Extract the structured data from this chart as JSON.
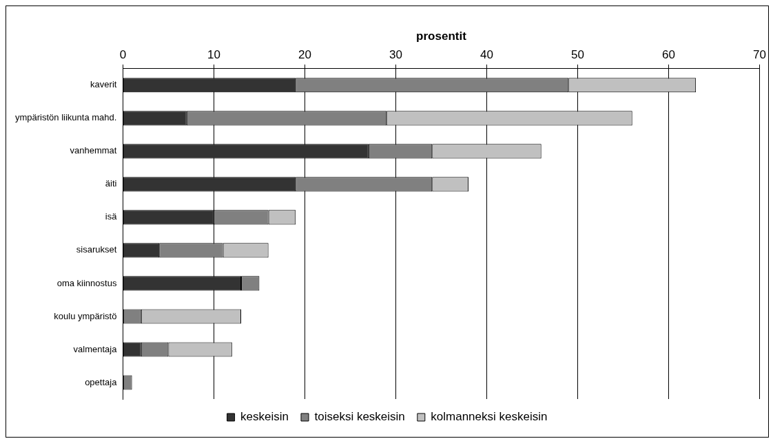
{
  "chart_data": {
    "type": "bar",
    "orientation": "horizontal",
    "stacked": true,
    "xlabel": "prosentit",
    "categories": [
      "kaverit",
      "ympäristön liikunta mahd.",
      "vanhemmat",
      "äiti",
      "isä",
      "sisarukset",
      "oma kiinnostus",
      "koulu ympäristö",
      "valmentaja",
      "opettaja"
    ],
    "series": [
      {
        "name": "keskeisin",
        "color": "#333333",
        "values": [
          19,
          7,
          27,
          19,
          10,
          4,
          13,
          0,
          2,
          0
        ]
      },
      {
        "name": "toiseksi keskeisin",
        "color": "#808080",
        "values": [
          30,
          22,
          7,
          15,
          6,
          7,
          2,
          2,
          3,
          1
        ]
      },
      {
        "name": "kolmanneksi keskeisin",
        "color": "#c0c0c0",
        "values": [
          14,
          27,
          12,
          4,
          3,
          5,
          0,
          11,
          7,
          0
        ]
      }
    ],
    "xlim": [
      0,
      70
    ],
    "xticks": [
      0,
      10,
      20,
      30,
      40,
      50,
      60,
      70
    ],
    "grid": "x",
    "legend": "bottom"
  }
}
